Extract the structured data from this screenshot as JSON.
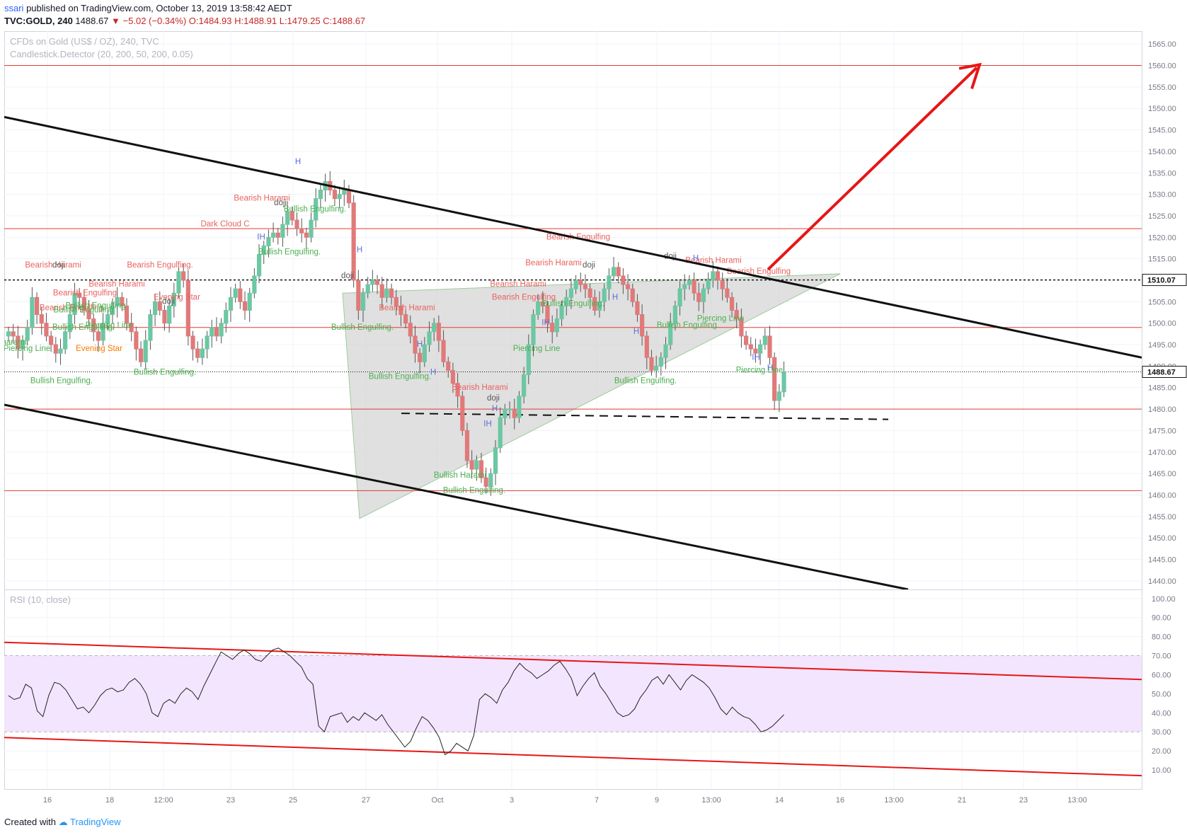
{
  "header": {
    "user": "ssari",
    "published": "published on TradingView.com, October 13, 2019 13:58:42 AEDT",
    "symbol": "TVC:GOLD, 240",
    "last": "1488.67",
    "change": "▼ −5.02 (−0.34%)",
    "ohlc": "O:1484.93 H:1488.91 L:1479.25 C:1488.67"
  },
  "footer": {
    "created": "Created with",
    "brand": "TradingView"
  },
  "colors": {
    "up": "#6cc7a3",
    "down": "#e07a7a",
    "bearish_label": "#e8635f",
    "bullish_label": "#4caf50",
    "hline": "#e53935",
    "trend": "#111111",
    "arrow": "#e81515",
    "rsi_band": "#f3e5fd",
    "triangle": "#d6d6d6"
  },
  "chart_data": [
    {
      "type": "candlestick",
      "title": "CFDs on Gold (US$ / OZ), 240, TVC",
      "indicator": "Candlestick.Detector (20, 200, 50, 200, 0.05)",
      "ylim": [
        1438,
        1568
      ],
      "y_ticks": [
        1440,
        1445,
        1450,
        1455,
        1460,
        1465,
        1470,
        1475,
        1480,
        1485,
        1490,
        1495,
        1500,
        1505,
        1510,
        1515,
        1520,
        1525,
        1530,
        1535,
        1540,
        1545,
        1550,
        1555,
        1560,
        1565
      ],
      "x_ticks": [
        "16",
        "18",
        "12:00",
        "23",
        "25",
        "27",
        "Oct",
        "3",
        "7",
        "9",
        "13:00",
        "14",
        "16",
        "13:00",
        "21",
        "23",
        "13:00"
      ],
      "price_tags": [
        "1510.07",
        "1488.67"
      ],
      "horizontal_levels": [
        1560,
        1522,
        1499,
        1480,
        1461
      ],
      "close_series": [
        1498,
        1497,
        1494,
        1496,
        1499,
        1506,
        1502,
        1500,
        1497,
        1495,
        1493,
        1494,
        1498,
        1502,
        1507,
        1506,
        1503,
        1501,
        1498,
        1496,
        1500,
        1502,
        1504,
        1506,
        1504,
        1500,
        1498,
        1494,
        1491,
        1496,
        1502,
        1505,
        1503,
        1500,
        1504,
        1507,
        1512,
        1510,
        1497,
        1494,
        1492,
        1494,
        1497,
        1499,
        1497,
        1500,
        1503,
        1506,
        1508,
        1505,
        1503,
        1507,
        1511,
        1516,
        1518,
        1520,
        1521,
        1520,
        1523,
        1526,
        1524,
        1522,
        1521,
        1520,
        1524,
        1529,
        1531,
        1533,
        1531,
        1529,
        1530,
        1531,
        1528,
        1510,
        1503,
        1507,
        1509,
        1510,
        1509,
        1506,
        1508,
        1506,
        1504,
        1502,
        1500,
        1497,
        1493,
        1491,
        1495,
        1498,
        1500,
        1496,
        1491,
        1489,
        1486,
        1483,
        1475,
        1468,
        1466,
        1468,
        1464,
        1462,
        1465,
        1471,
        1478,
        1480,
        1480,
        1478,
        1483,
        1488,
        1495,
        1502,
        1505,
        1504,
        1500,
        1498,
        1501,
        1504,
        1506,
        1508,
        1510,
        1509,
        1508,
        1506,
        1503,
        1505,
        1508,
        1511,
        1513,
        1511,
        1509,
        1508,
        1505,
        1502,
        1497,
        1492,
        1489,
        1490,
        1492,
        1495,
        1500,
        1504,
        1508,
        1509,
        1510,
        1507,
        1505,
        1508,
        1510,
        1512,
        1510,
        1508,
        1506,
        1503,
        1501,
        1497,
        1495,
        1494,
        1493,
        1495,
        1497,
        1492,
        1482,
        1484,
        1488.67
      ],
      "pattern_labels": [
        {
          "text": "Bearish Engulfing",
          "price": 1519.5,
          "kind": "bearish"
        },
        {
          "text": "Bearish Harami",
          "price": 1513.5,
          "kind": "bearish"
        },
        {
          "text": "Bearish Harami",
          "price": 1528.5,
          "kind": "bearish"
        },
        {
          "text": "Dark Cloud C",
          "price": 1522.5,
          "kind": "bearish"
        },
        {
          "text": "Bearish Harami",
          "price": 1513,
          "kind": "bearish"
        },
        {
          "text": "Bearish Engulfing.",
          "price": 1513,
          "kind": "bearish"
        },
        {
          "text": "Bearish Harami",
          "price": 1508.5,
          "kind": "bearish"
        },
        {
          "text": "Bearish Engulfing",
          "price": 1506.5,
          "kind": "bearish"
        },
        {
          "text": "Bearish Harami",
          "price": 1503,
          "kind": "bearish"
        },
        {
          "text": "Bearish Engulfing",
          "price": 1505.5,
          "kind": "bearish"
        },
        {
          "text": "Bearish Harami",
          "price": 1508.5,
          "kind": "bearish"
        },
        {
          "text": "Bearish Harami",
          "price": 1514,
          "kind": "bearish"
        },
        {
          "text": "Bearish Engulfing",
          "price": 1511.5,
          "kind": "bearish"
        },
        {
          "text": "Bearish Harami",
          "price": 1484.5,
          "kind": "bearish"
        },
        {
          "text": "Bearish Engulfing",
          "price": 1503,
          "kind": "bearish"
        },
        {
          "text": "Bullish Engulfing.",
          "price": 1526,
          "kind": "bullish"
        },
        {
          "text": "Bullish Engulfing.",
          "price": 1516,
          "kind": "bullish"
        },
        {
          "text": "Bullish Engulfing.",
          "price": 1486,
          "kind": "bullish"
        },
        {
          "text": "Bullish Engulfing.",
          "price": 1488,
          "kind": "bullish"
        },
        {
          "text": "Bullish Engulfing.",
          "price": 1498.5,
          "kind": "bullish"
        },
        {
          "text": "Bullish Engulfing.",
          "price": 1487,
          "kind": "bullish"
        },
        {
          "text": "Bullish Engulfing.",
          "price": 1460.5,
          "kind": "bullish"
        },
        {
          "text": "Bullish Harami",
          "price": 1464,
          "kind": "bullish"
        },
        {
          "text": "Piercing Line",
          "price": 1493.5,
          "kind": "bullish"
        },
        {
          "text": "Bullish Engulfing.",
          "price": 1504,
          "kind": "bullish"
        },
        {
          "text": "Bullish Engulfing.",
          "price": 1486,
          "kind": "bullish"
        },
        {
          "text": "Bullish Engulfing.",
          "price": 1499,
          "kind": "bullish"
        },
        {
          "text": "Piercing Line",
          "price": 1500.5,
          "kind": "bullish"
        },
        {
          "text": "Piercing Line",
          "price": 1488.5,
          "kind": "bullish"
        },
        {
          "text": "Bullish Engulfing.",
          "price": 1498.5,
          "kind": "bullish"
        },
        {
          "text": "Piercing Line",
          "price": 1493.5,
          "kind": "bullish"
        },
        {
          "text": "Piercing Line",
          "price": 1499,
          "kind": "bullish"
        },
        {
          "text": "Bullish Engulfing",
          "price": 1503.5,
          "kind": "bullish"
        },
        {
          "text": "Bullish Engulfing",
          "price": 1502.5,
          "kind": "bullish"
        },
        {
          "text": "Evening Star",
          "price": 1505.5,
          "kind": "bearish"
        },
        {
          "text": "Evening Star",
          "price": 1493.5,
          "kind": "star"
        },
        {
          "text": "doji",
          "price": 1513,
          "kind": "doji"
        },
        {
          "text": "doji",
          "price": 1527.5,
          "kind": "doji"
        },
        {
          "text": "doji",
          "price": 1504.5,
          "kind": "doji"
        },
        {
          "text": "doji",
          "price": 1510.5,
          "kind": "doji"
        },
        {
          "text": "doji",
          "price": 1513,
          "kind": "doji"
        },
        {
          "text": "doji",
          "price": 1515,
          "kind": "doji"
        },
        {
          "text": "doji",
          "price": 1482,
          "kind": "doji"
        },
        {
          "text": "H",
          "price": 1537,
          "kind": "hammer"
        },
        {
          "text": "H",
          "price": 1516.5,
          "kind": "hammer"
        },
        {
          "text": "IH",
          "price": 1519.5,
          "kind": "hammer"
        },
        {
          "text": "H",
          "price": 1494.5,
          "kind": "hammer"
        },
        {
          "text": "H",
          "price": 1488,
          "kind": "hammer"
        },
        {
          "text": "IH",
          "price": 1476,
          "kind": "hammer"
        },
        {
          "text": "H",
          "price": 1479.5,
          "kind": "hammer"
        },
        {
          "text": "IH",
          "price": 1499.5,
          "kind": "hammer"
        },
        {
          "text": "H",
          "price": 1505.5,
          "kind": "hammer"
        },
        {
          "text": "H",
          "price": 1497.5,
          "kind": "hammer"
        },
        {
          "text": "IH",
          "price": 1491.5,
          "kind": "hammer"
        },
        {
          "text": "H",
          "price": 1489,
          "kind": "hammer"
        },
        {
          "text": "H",
          "price": 1514.5,
          "kind": "hammer"
        },
        {
          "text": "harami",
          "price": 1495,
          "kind": "bullish"
        }
      ]
    },
    {
      "type": "line",
      "title": "RSI (10, close)",
      "ylim": [
        0,
        104
      ],
      "y_ticks": [
        10,
        20,
        30,
        40,
        50,
        60,
        70,
        80,
        90,
        100
      ],
      "band": [
        30,
        70
      ],
      "values": [
        49,
        47,
        48,
        55,
        53,
        41,
        38,
        49,
        56,
        55,
        52,
        47,
        42,
        43,
        40,
        44,
        49,
        52,
        53,
        51,
        52,
        56,
        58,
        55,
        50,
        40,
        38,
        45,
        47,
        45,
        50,
        53,
        51,
        47,
        54,
        60,
        66,
        72,
        70,
        68,
        71,
        73,
        71,
        68,
        67,
        70,
        73,
        74,
        72,
        70,
        67,
        64,
        58,
        55,
        33,
        30,
        38,
        39,
        40,
        35,
        38,
        36,
        40,
        38,
        36,
        39,
        34,
        30,
        26,
        22,
        25,
        32,
        38,
        36,
        32,
        27,
        18,
        20,
        24,
        22,
        20,
        28,
        47,
        50,
        48,
        45,
        52,
        56,
        62,
        66,
        63,
        61,
        58,
        60,
        62,
        65,
        67,
        63,
        58,
        49,
        54,
        58,
        61,
        54,
        50,
        45,
        40,
        38,
        39,
        42,
        48,
        52,
        57,
        59,
        55,
        60,
        56,
        52,
        57,
        60,
        58,
        56,
        53,
        48,
        42,
        39,
        43,
        40,
        38,
        37,
        34,
        30,
        31,
        33,
        36,
        39
      ],
      "trend_note": ""
    }
  ]
}
